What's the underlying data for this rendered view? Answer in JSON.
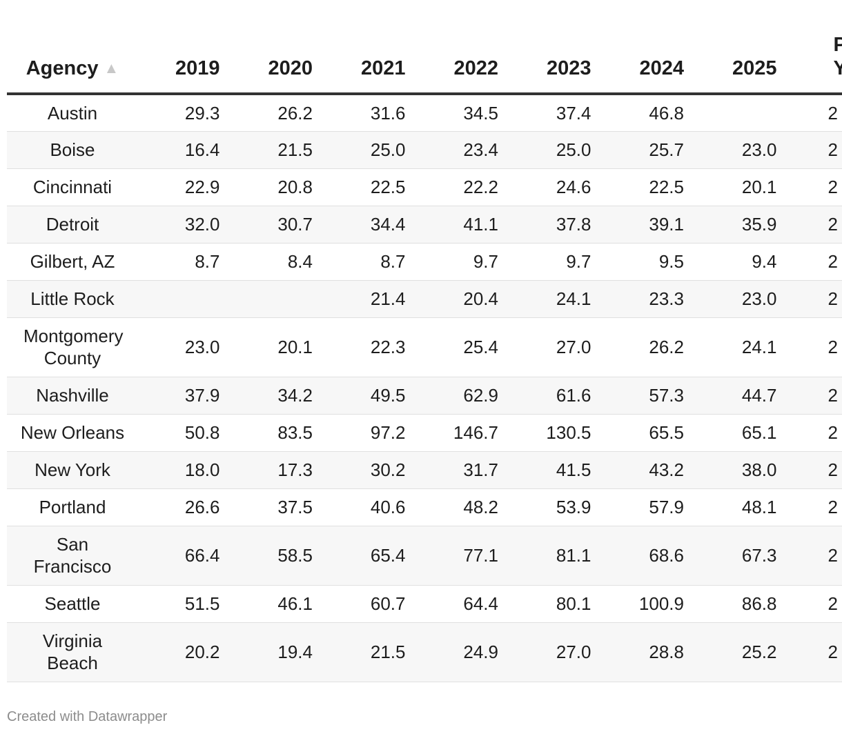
{
  "chart_data": {
    "type": "table",
    "columns": [
      "Agency",
      "2019",
      "2020",
      "2021",
      "2022",
      "2023",
      "2024",
      "2025",
      "P Y"
    ],
    "sort": {
      "column": "Agency",
      "direction": "ascending"
    },
    "rows": [
      {
        "agency": "Austin",
        "values": [
          "29.3",
          "26.2",
          "31.6",
          "34.5",
          "37.4",
          "46.8",
          ""
        ],
        "extra": "2"
      },
      {
        "agency": "Boise",
        "values": [
          "16.4",
          "21.5",
          "25.0",
          "23.4",
          "25.0",
          "25.7",
          "23.0"
        ],
        "extra": "2"
      },
      {
        "agency": "Cincinnati",
        "values": [
          "22.9",
          "20.8",
          "22.5",
          "22.2",
          "24.6",
          "22.5",
          "20.1"
        ],
        "extra": "2"
      },
      {
        "agency": "Detroit",
        "values": [
          "32.0",
          "30.7",
          "34.4",
          "41.1",
          "37.8",
          "39.1",
          "35.9"
        ],
        "extra": "2"
      },
      {
        "agency": "Gilbert, AZ",
        "values": [
          "8.7",
          "8.4",
          "8.7",
          "9.7",
          "9.7",
          "9.5",
          "9.4"
        ],
        "extra": "2"
      },
      {
        "agency": "Little Rock",
        "values": [
          "",
          "",
          "21.4",
          "20.4",
          "24.1",
          "23.3",
          "23.0"
        ],
        "extra": "2"
      },
      {
        "agency": "Montgomery County",
        "values": [
          "23.0",
          "20.1",
          "22.3",
          "25.4",
          "27.0",
          "26.2",
          "24.1"
        ],
        "extra": "2"
      },
      {
        "agency": "Nashville",
        "values": [
          "37.9",
          "34.2",
          "49.5",
          "62.9",
          "61.6",
          "57.3",
          "44.7"
        ],
        "extra": "2"
      },
      {
        "agency": "New Orleans",
        "values": [
          "50.8",
          "83.5",
          "97.2",
          "146.7",
          "130.5",
          "65.5",
          "65.1"
        ],
        "extra": "2"
      },
      {
        "agency": "New York",
        "values": [
          "18.0",
          "17.3",
          "30.2",
          "31.7",
          "41.5",
          "43.2",
          "38.0"
        ],
        "extra": "2"
      },
      {
        "agency": "Portland",
        "values": [
          "26.6",
          "37.5",
          "40.6",
          "48.2",
          "53.9",
          "57.9",
          "48.1"
        ],
        "extra": "2"
      },
      {
        "agency": "San Francisco",
        "values": [
          "66.4",
          "58.5",
          "65.4",
          "77.1",
          "81.1",
          "68.6",
          "67.3"
        ],
        "extra": "2"
      },
      {
        "agency": "Seattle",
        "values": [
          "51.5",
          "46.1",
          "60.7",
          "64.4",
          "80.1",
          "100.9",
          "86.8"
        ],
        "extra": "2"
      },
      {
        "agency": "Virginia Beach",
        "values": [
          "20.2",
          "19.4",
          "21.5",
          "24.9",
          "27.0",
          "28.8",
          "25.2"
        ],
        "extra": "2"
      }
    ]
  },
  "header": {
    "agency_label": "Agency",
    "years": [
      "2019",
      "2020",
      "2021",
      "2022",
      "2023",
      "2024",
      "2025"
    ],
    "extra_line1": "P",
    "extra_line2": "Y"
  },
  "footer": {
    "credit": "Created with Datawrapper"
  }
}
